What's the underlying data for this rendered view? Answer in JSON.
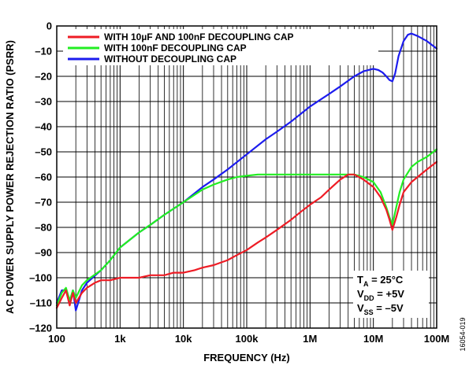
{
  "chart_data": {
    "type": "line",
    "xlabel": "FREQUENCY (Hz)",
    "ylabel": "AC POWER SUPPLY POWER REJECTION RATIO (PSRR)",
    "x_scale": "log",
    "xlim": [
      100,
      100000000
    ],
    "ylim": [
      -120,
      0
    ],
    "x_ticks": [
      {
        "value": 100,
        "label": "100"
      },
      {
        "value": 1000,
        "label": "1k"
      },
      {
        "value": 10000,
        "label": "10k"
      },
      {
        "value": 100000,
        "label": "100k"
      },
      {
        "value": 1000000,
        "label": "1M"
      },
      {
        "value": 10000000,
        "label": "10M"
      },
      {
        "value": 100000000,
        "label": "100M"
      }
    ],
    "y_ticks": [
      0,
      -10,
      -20,
      -30,
      -40,
      -50,
      -60,
      -70,
      -80,
      -90,
      -100,
      -110,
      -120
    ],
    "grid": true,
    "legend_position": "top-left",
    "series": [
      {
        "name": "WITH 10µF AND 100nF DECOUPLING CAP",
        "color": "#ee1c25",
        "x": [
          100,
          120,
          140,
          160,
          180,
          200,
          250,
          300,
          400,
          500,
          700,
          1000,
          1500,
          2000,
          3000,
          5000,
          7000,
          10000,
          15000,
          20000,
          30000,
          50000,
          70000,
          100000,
          150000,
          200000,
          300000,
          500000,
          700000,
          1000000,
          1500000,
          2000000,
          3000000,
          4000000,
          5000000,
          7000000,
          10000000,
          13000000,
          16000000,
          18000000,
          20000000,
          23000000,
          26000000,
          30000000,
          40000000,
          50000000,
          70000000,
          100000000
        ],
        "y": [
          -112,
          -108,
          -105,
          -111,
          -106,
          -110,
          -106,
          -104,
          -102,
          -101,
          -101,
          -100,
          -100,
          -100,
          -99,
          -99,
          -98,
          -98,
          -97,
          -96,
          -95,
          -93,
          -91,
          -89,
          -86,
          -84,
          -81,
          -77,
          -74,
          -71,
          -68,
          -65,
          -61,
          -59,
          -59,
          -61,
          -64,
          -68,
          -73,
          -77,
          -81,
          -76,
          -71,
          -66,
          -62,
          -60,
          -57,
          -54
        ]
      },
      {
        "name": "WITH 100nF DECOUPLING CAP",
        "color": "#22ee22",
        "x": [
          100,
          120,
          140,
          160,
          180,
          200,
          250,
          300,
          500,
          700,
          1000,
          2000,
          3000,
          5000,
          10000,
          20000,
          30000,
          50000,
          70000,
          100000,
          150000,
          200000,
          300000,
          500000,
          700000,
          1000000,
          2000000,
          3000000,
          5000000,
          7000000,
          10000000,
          13000000,
          16000000,
          18000000,
          20000000,
          23000000,
          26000000,
          30000000,
          40000000,
          50000000,
          70000000,
          100000000
        ],
        "y": [
          -111,
          -106,
          -104,
          -109,
          -105,
          -108,
          -103,
          -101,
          -97,
          -93,
          -88,
          -82,
          -79,
          -75,
          -70,
          -65,
          -63,
          -61,
          -60,
          -59.5,
          -59,
          -59,
          -59,
          -59,
          -59,
          -59,
          -59,
          -59,
          -59,
          -60,
          -62,
          -66,
          -72,
          -76,
          -79,
          -72,
          -66,
          -61,
          -56,
          -54,
          -52,
          -49
        ]
      },
      {
        "name": "WITH­OUT DECOUPLING CAP",
        "color": "#1c1cee",
        "x": [
          100,
          120,
          140,
          160,
          180,
          200,
          250,
          300,
          500,
          700,
          1000,
          2000,
          3000,
          5000,
          10000,
          20000,
          30000,
          50000,
          100000,
          200000,
          300000,
          500000,
          1000000,
          2000000,
          3000000,
          5000000,
          7000000,
          10000000,
          12000000,
          14000000,
          16000000,
          18000000,
          20000000,
          22000000,
          25000000,
          30000000,
          35000000,
          40000000,
          50000000,
          70000000,
          100000000
        ],
        "y": [
          -110,
          -105,
          -105,
          -110,
          -105,
          -113,
          -105,
          -102,
          -97,
          -93,
          -88,
          -82,
          -79,
          -75,
          -70,
          -64,
          -61,
          -57,
          -51,
          -45,
          -42,
          -38,
          -32,
          -27,
          -24,
          -20,
          -18,
          -17,
          -17.5,
          -18.5,
          -20,
          -21.5,
          -22,
          -19,
          -12,
          -6,
          -3.5,
          -3,
          -4,
          -6,
          -9
        ]
      }
    ],
    "annotation": {
      "line1": {
        "main": "T",
        "sub": "A",
        "rest": " = 25°C"
      },
      "line2": {
        "main": "V",
        "sub": "DD",
        "rest": " = +5V"
      },
      "line3": {
        "main": "V",
        "sub": "SS",
        "rest": " = –5V"
      }
    },
    "figure_id": "16054-019"
  }
}
